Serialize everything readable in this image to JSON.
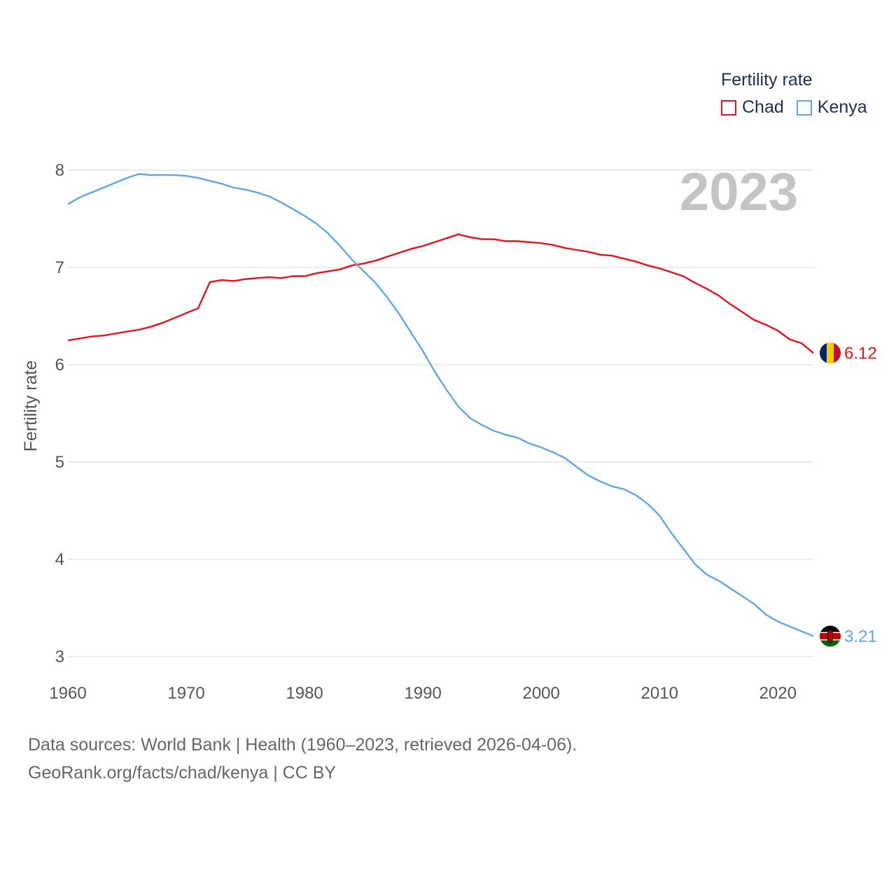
{
  "legend": {
    "title": "Fertility rate",
    "items": [
      {
        "label": "Chad",
        "color": "#e8101c"
      },
      {
        "label": "Kenya",
        "color": "#5ea6e8"
      }
    ]
  },
  "footer": {
    "line1": "Data sources: World Bank | Health (1960–2023, retrieved 2026-04-06).",
    "line2": "GeoRank.org/facts/chad/kenya | CC BY"
  },
  "chart_data": {
    "type": "line",
    "year_watermark": "2023",
    "ylabel": "Fertility rate",
    "xlabel": "",
    "xlim": [
      1960,
      2023
    ],
    "ylim": [
      3,
      8
    ],
    "x_ticks": [
      1960,
      1970,
      1980,
      1990,
      2000,
      2010,
      2020
    ],
    "y_ticks": [
      3,
      4,
      5,
      6,
      7,
      8
    ],
    "grid": true,
    "legend_position": "top-right",
    "x": [
      1960,
      1961,
      1962,
      1963,
      1964,
      1965,
      1966,
      1967,
      1968,
      1969,
      1970,
      1971,
      1972,
      1973,
      1974,
      1975,
      1976,
      1977,
      1978,
      1979,
      1980,
      1981,
      1982,
      1983,
      1984,
      1985,
      1986,
      1987,
      1988,
      1989,
      1990,
      1991,
      1992,
      1993,
      1994,
      1995,
      1996,
      1997,
      1998,
      1999,
      2000,
      2001,
      2002,
      2003,
      2004,
      2005,
      2006,
      2007,
      2008,
      2009,
      2010,
      2011,
      2012,
      2013,
      2014,
      2015,
      2016,
      2017,
      2018,
      2019,
      2020,
      2021,
      2022,
      2023
    ],
    "series": [
      {
        "name": "Chad",
        "color": "#e8101c",
        "end_label": "6.12",
        "flag": "chad-flag",
        "values": [
          6.25,
          6.27,
          6.29,
          6.3,
          6.32,
          6.34,
          6.36,
          6.39,
          6.43,
          6.48,
          6.53,
          6.58,
          6.85,
          6.87,
          6.86,
          6.88,
          6.89,
          6.9,
          6.89,
          6.91,
          6.91,
          6.94,
          6.96,
          6.98,
          7.02,
          7.04,
          7.07,
          7.11,
          7.15,
          7.19,
          7.22,
          7.26,
          7.3,
          7.34,
          7.31,
          7.29,
          7.29,
          7.27,
          7.27,
          7.26,
          7.25,
          7.23,
          7.2,
          7.18,
          7.16,
          7.13,
          7.12,
          7.09,
          7.06,
          7.02,
          6.99,
          6.95,
          6.91,
          6.84,
          6.78,
          6.71,
          6.62,
          6.54,
          6.46,
          6.41,
          6.35,
          6.26,
          6.22,
          6.12
        ]
      },
      {
        "name": "Kenya",
        "color": "#5ea6e8",
        "end_label": "3.21",
        "flag": "kenya-flag",
        "values": [
          7.65,
          7.72,
          7.77,
          7.82,
          7.87,
          7.92,
          7.96,
          7.95,
          7.95,
          7.95,
          7.94,
          7.92,
          7.89,
          7.86,
          7.82,
          7.8,
          7.77,
          7.73,
          7.67,
          7.6,
          7.53,
          7.45,
          7.35,
          7.22,
          7.08,
          6.96,
          6.84,
          6.69,
          6.52,
          6.33,
          6.14,
          5.93,
          5.74,
          5.57,
          5.45,
          5.38,
          5.32,
          5.28,
          5.25,
          5.19,
          5.15,
          5.1,
          5.04,
          4.95,
          4.86,
          4.8,
          4.75,
          4.72,
          4.66,
          4.57,
          4.45,
          4.27,
          4.11,
          3.95,
          3.84,
          3.78,
          3.7,
          3.62,
          3.54,
          3.43,
          3.36,
          3.31,
          3.26,
          3.21
        ]
      }
    ]
  }
}
